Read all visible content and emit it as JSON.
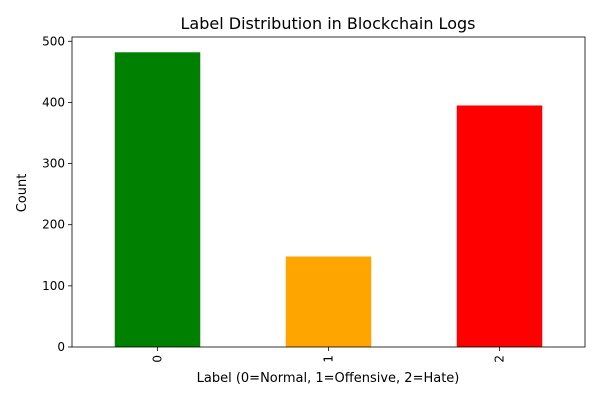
{
  "chart_data": {
    "type": "bar",
    "title": "Label Distribution in Blockchain Logs",
    "xlabel": "Label (0=Normal, 1=Offensive, 2=Hate)",
    "ylabel": "Count",
    "categories": [
      "0",
      "1",
      "2"
    ],
    "values": [
      482,
      148,
      395
    ],
    "colors": [
      "#008000",
      "#ffa500",
      "#ff0000"
    ],
    "ylim": [
      0,
      507
    ],
    "yticks": [
      0,
      100,
      200,
      300,
      400,
      500
    ],
    "xtick_rotation": 90,
    "grid": false,
    "legend": false
  }
}
